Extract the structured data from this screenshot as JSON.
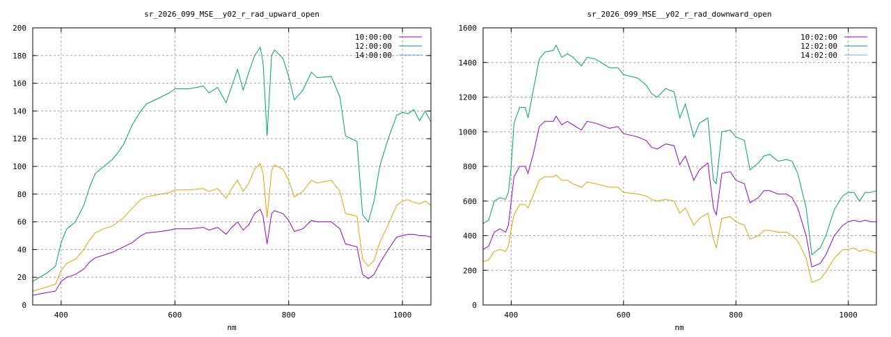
{
  "chart_data": [
    {
      "type": "line",
      "title": "sr_2026_099_MSE__y02_r_rad_upward_open",
      "xlabel": "nm",
      "ylabel": "",
      "xlim": [
        350,
        1050
      ],
      "ylim": [
        0,
        200
      ],
      "xticks": [
        400,
        600,
        800,
        1000
      ],
      "yticks": [
        0,
        20,
        40,
        60,
        80,
        100,
        120,
        140,
        160,
        180,
        200
      ],
      "grid": true,
      "legend_position": "top-right",
      "legend": [
        {
          "label": "10:00:00",
          "color": "#9400d3"
        },
        {
          "label": "12:00:00",
          "color": "#009e73"
        },
        {
          "label": "14:00:00",
          "color": "#56b4e9"
        }
      ],
      "x": [
        350,
        375,
        390,
        400,
        410,
        425,
        440,
        450,
        460,
        475,
        490,
        500,
        510,
        525,
        540,
        550,
        575,
        590,
        600,
        625,
        650,
        660,
        675,
        690,
        700,
        710,
        720,
        730,
        740,
        750,
        755,
        762,
        770,
        775,
        790,
        800,
        810,
        825,
        840,
        850,
        875,
        890,
        900,
        910,
        920,
        930,
        940,
        950,
        960,
        975,
        990,
        1000,
        1010,
        1020,
        1030,
        1040,
        1050
      ],
      "series": [
        {
          "color": "#9400d3",
          "values": [
            7,
            9,
            10,
            17,
            20,
            22,
            26,
            31,
            34,
            36,
            38,
            40,
            42,
            45,
            50,
            52,
            53,
            54,
            55,
            55,
            56,
            54,
            56,
            51,
            56,
            60,
            54,
            58,
            66,
            69,
            64,
            44,
            66,
            68,
            66,
            61,
            53,
            55,
            61,
            60,
            60,
            55,
            44,
            43,
            42,
            22,
            19,
            22,
            30,
            40,
            49,
            50,
            51,
            51,
            50,
            50,
            49
          ]
        },
        {
          "color": "#e69f00",
          "values": [
            10,
            13,
            15,
            25,
            30,
            33,
            40,
            47,
            52,
            55,
            57,
            60,
            63,
            70,
            76,
            78,
            80,
            81,
            83,
            83,
            84,
            82,
            84,
            77,
            84,
            90,
            82,
            88,
            98,
            102,
            95,
            63,
            97,
            101,
            98,
            90,
            78,
            82,
            90,
            88,
            90,
            82,
            66,
            65,
            64,
            33,
            28,
            32,
            45,
            58,
            72,
            75,
            76,
            74,
            73,
            75,
            72
          ]
        },
        {
          "color": "#009e73",
          "values": [
            17,
            23,
            28,
            45,
            55,
            60,
            72,
            85,
            95,
            100,
            105,
            110,
            116,
            130,
            140,
            145,
            150,
            153,
            156,
            156,
            158,
            153,
            157,
            146,
            158,
            170,
            155,
            168,
            180,
            186,
            175,
            122,
            180,
            184,
            178,
            165,
            148,
            155,
            168,
            164,
            165,
            150,
            122,
            120,
            118,
            65,
            60,
            75,
            100,
            120,
            137,
            139,
            138,
            141,
            133,
            140,
            132
          ]
        }
      ]
    },
    {
      "type": "line",
      "title": "sr_2026_099_MSE__y02_r_rad_downward_open",
      "xlabel": "nm",
      "ylabel": "",
      "xlim": [
        350,
        1050
      ],
      "ylim": [
        0,
        1600
      ],
      "xticks": [
        400,
        600,
        800,
        1000
      ],
      "yticks": [
        0,
        200,
        400,
        600,
        800,
        1000,
        1200,
        1400,
        1600
      ],
      "grid": true,
      "legend_position": "top-right",
      "legend": [
        {
          "label": "10:02:00",
          "color": "#9400d3"
        },
        {
          "label": "12:02:00",
          "color": "#009e73"
        },
        {
          "label": "14:02:00",
          "color": "#56b4e9"
        }
      ],
      "x": [
        350,
        360,
        370,
        380,
        390,
        395,
        400,
        405,
        415,
        425,
        430,
        440,
        450,
        460,
        475,
        480,
        490,
        500,
        510,
        525,
        535,
        550,
        575,
        590,
        600,
        625,
        640,
        650,
        660,
        675,
        690,
        700,
        710,
        725,
        735,
        750,
        760,
        765,
        775,
        790,
        800,
        815,
        825,
        840,
        850,
        860,
        875,
        890,
        900,
        910,
        925,
        935,
        950,
        960,
        975,
        990,
        1000,
        1010,
        1020,
        1030,
        1040,
        1050
      ],
      "series": [
        {
          "color": "#9400d3",
          "values": [
            320,
            340,
            420,
            440,
            420,
            460,
            600,
            740,
            800,
            800,
            760,
            880,
            1030,
            1060,
            1060,
            1090,
            1040,
            1060,
            1040,
            1010,
            1060,
            1050,
            1020,
            1030,
            990,
            970,
            950,
            910,
            900,
            930,
            920,
            810,
            860,
            720,
            780,
            820,
            560,
            520,
            760,
            770,
            720,
            700,
            590,
            620,
            660,
            660,
            640,
            640,
            620,
            560,
            400,
            220,
            240,
            290,
            400,
            460,
            480,
            490,
            480,
            490,
            480,
            480
          ]
        },
        {
          "color": "#e69f00",
          "values": [
            250,
            260,
            310,
            320,
            310,
            340,
            440,
            520,
            580,
            580,
            560,
            640,
            720,
            740,
            740,
            750,
            720,
            720,
            700,
            680,
            710,
            700,
            680,
            680,
            650,
            640,
            630,
            610,
            600,
            610,
            600,
            530,
            560,
            460,
            500,
            530,
            380,
            330,
            500,
            510,
            480,
            460,
            380,
            400,
            430,
            430,
            420,
            420,
            400,
            370,
            270,
            130,
            150,
            190,
            270,
            320,
            320,
            330,
            310,
            320,
            310,
            300
          ]
        },
        {
          "color": "#009e73",
          "values": [
            470,
            490,
            600,
            620,
            610,
            650,
            800,
            1050,
            1140,
            1140,
            1080,
            1250,
            1420,
            1460,
            1470,
            1500,
            1430,
            1450,
            1430,
            1380,
            1430,
            1420,
            1370,
            1370,
            1330,
            1310,
            1270,
            1220,
            1200,
            1250,
            1230,
            1080,
            1160,
            970,
            1050,
            1080,
            720,
            700,
            1000,
            1010,
            970,
            950,
            780,
            820,
            860,
            870,
            830,
            840,
            830,
            760,
            560,
            290,
            330,
            400,
            550,
            630,
            650,
            650,
            600,
            650,
            650,
            660
          ]
        }
      ]
    }
  ]
}
